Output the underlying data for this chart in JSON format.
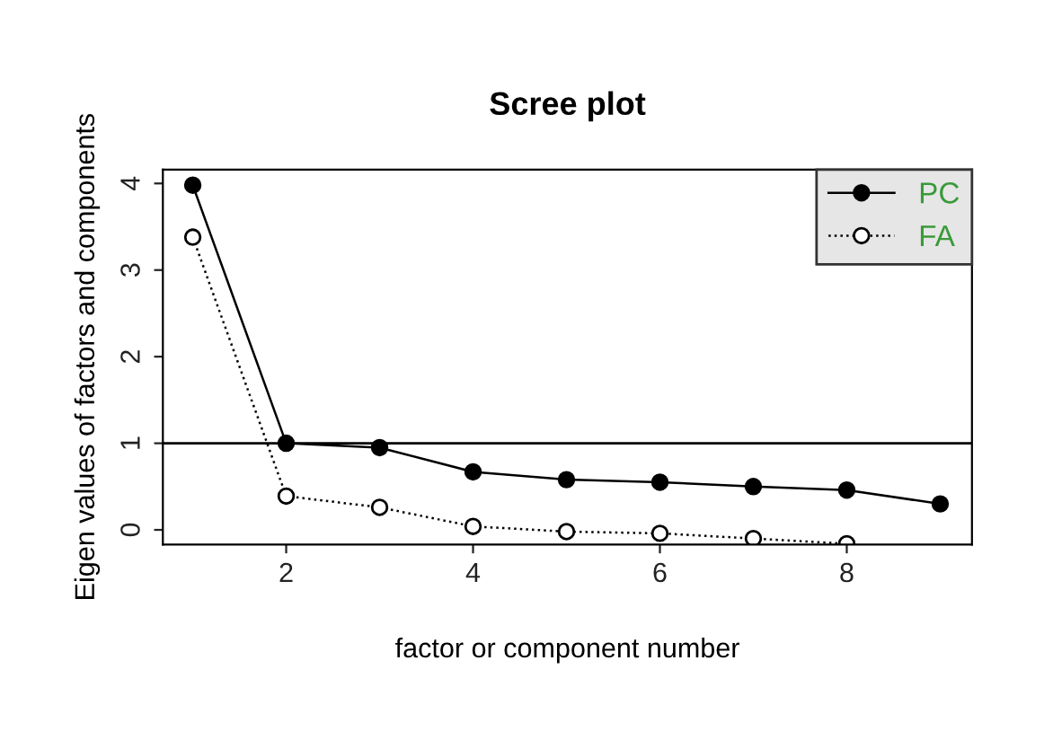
{
  "chart_data": {
    "type": "line",
    "title": "Scree plot",
    "xlabel": "factor or component number",
    "ylabel": "Eigen values of factors and components",
    "x": [
      1,
      2,
      3,
      4,
      5,
      6,
      7,
      8,
      9
    ],
    "series": [
      {
        "name": "PC",
        "color": "#000000",
        "line_style": "solid",
        "values": [
          3.98,
          1.0,
          0.95,
          0.67,
          0.58,
          0.55,
          0.5,
          0.46,
          0.3
        ]
      },
      {
        "name": "FA",
        "color": "#000000",
        "line_style": "dotted",
        "values": [
          3.38,
          0.39,
          0.26,
          0.04,
          -0.02,
          -0.04,
          -0.1,
          -0.16,
          null
        ]
      }
    ],
    "xlim": [
      0.68,
      9.34
    ],
    "ylim": [
      -0.17,
      4.16
    ],
    "xticks": [
      2,
      4,
      6,
      8
    ],
    "yticks": [
      0,
      1,
      2,
      3,
      4
    ],
    "ref_lines": [
      {
        "axis": "y",
        "value": 1,
        "label": null,
        "color": "#000000"
      }
    ],
    "marker": "circle",
    "grid": false,
    "legend": "top right"
  }
}
